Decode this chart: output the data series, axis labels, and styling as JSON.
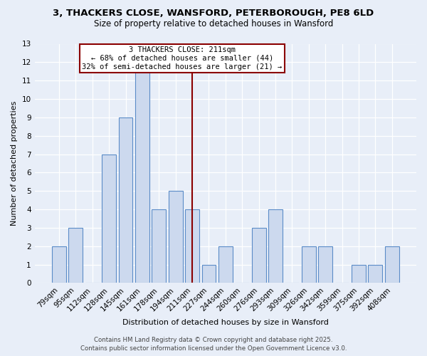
{
  "title": "3, THACKERS CLOSE, WANSFORD, PETERBOROUGH, PE8 6LD",
  "subtitle": "Size of property relative to detached houses in Wansford",
  "xlabel": "Distribution of detached houses by size in Wansford",
  "ylabel": "Number of detached properties",
  "categories": [
    "79sqm",
    "95sqm",
    "112sqm",
    "128sqm",
    "145sqm",
    "161sqm",
    "178sqm",
    "194sqm",
    "211sqm",
    "227sqm",
    "244sqm",
    "260sqm",
    "276sqm",
    "293sqm",
    "309sqm",
    "326sqm",
    "342sqm",
    "359sqm",
    "375sqm",
    "392sqm",
    "408sqm"
  ],
  "values": [
    2,
    3,
    0,
    7,
    9,
    12,
    4,
    5,
    4,
    1,
    2,
    0,
    3,
    4,
    0,
    2,
    2,
    0,
    1,
    1,
    2
  ],
  "bar_color": "#ccd9ee",
  "bar_edge_color": "#5b8cc8",
  "vline_color": "#8b0000",
  "vline_index": 8,
  "annotation_box_text": "3 THACKERS CLOSE: 211sqm\n← 68% of detached houses are smaller (44)\n32% of semi-detached houses are larger (21) →",
  "annotation_box_edge_color": "#8b0000",
  "annotation_box_bg": "#ffffff",
  "ylim": [
    0,
    13
  ],
  "yticks": [
    0,
    1,
    2,
    3,
    4,
    5,
    6,
    7,
    8,
    9,
    10,
    11,
    12,
    13
  ],
  "bg_color": "#e8eef8",
  "footer": "Contains HM Land Registry data © Crown copyright and database right 2025.\nContains public sector information licensed under the Open Government Licence v3.0.",
  "title_fontsize": 9.5,
  "subtitle_fontsize": 8.5,
  "xlabel_fontsize": 8,
  "ylabel_fontsize": 8,
  "tick_fontsize": 7.5,
  "annot_fontsize": 7.5
}
